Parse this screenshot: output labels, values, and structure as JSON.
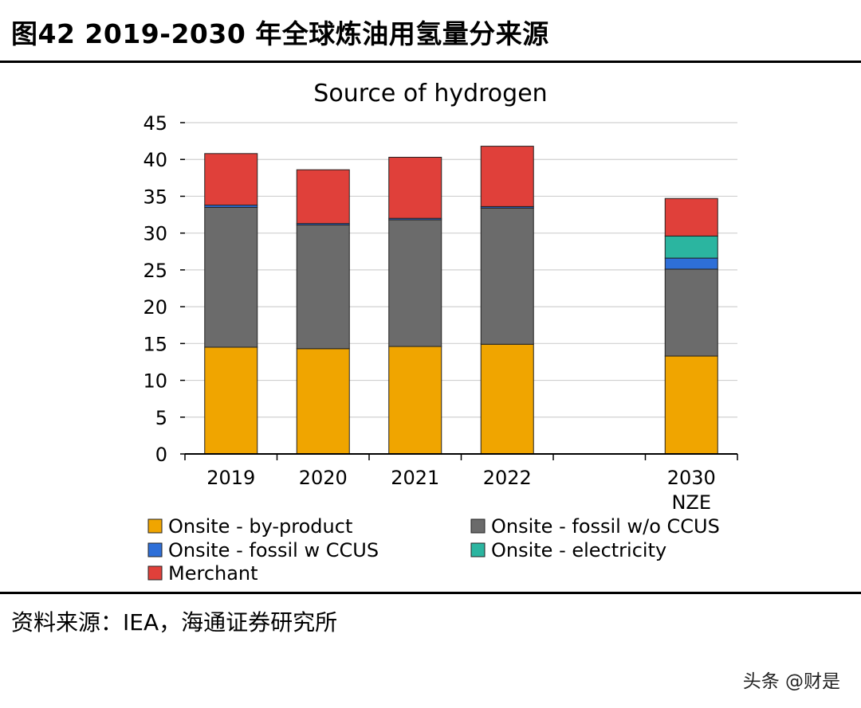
{
  "figure": {
    "title": "图42 2019-2030 年全球炼油用氢量分来源",
    "source": "资料来源：IEA，海通证券研究所",
    "watermark": "头条 @财是"
  },
  "chart_data": {
    "type": "bar",
    "stacked": true,
    "title": "Source of hydrogen",
    "xlabel": "",
    "ylabel": "",
    "ylim": [
      0,
      45
    ],
    "yticks": [
      0,
      5,
      10,
      15,
      20,
      25,
      30,
      35,
      40,
      45
    ],
    "grid": true,
    "legend_position": "bottom",
    "categories": [
      "2019",
      "2020",
      "2021",
      "2022",
      "",
      "2030 NZE"
    ],
    "category_lines": [
      [
        "2019"
      ],
      [
        "2020"
      ],
      [
        "2021"
      ],
      [
        "2022"
      ],
      [],
      [
        "2030",
        "NZE"
      ]
    ],
    "series": [
      {
        "name": "Onsite - by-product",
        "color": "#F0A500",
        "values": [
          14.5,
          14.3,
          14.6,
          14.9,
          null,
          13.3
        ]
      },
      {
        "name": "Onsite - fossil w/o CCUS",
        "color": "#6B6B6B",
        "values": [
          19.0,
          16.8,
          17.2,
          18.5,
          null,
          11.8
        ]
      },
      {
        "name": "Onsite - fossil w CCUS",
        "color": "#2E6FD8",
        "values": [
          0.3,
          0.2,
          0.2,
          0.2,
          null,
          1.5
        ]
      },
      {
        "name": "Onsite - electricity",
        "color": "#2BB5A0",
        "values": [
          0,
          0,
          0,
          0,
          null,
          3.0
        ]
      },
      {
        "name": "Merchant",
        "color": "#E0403A",
        "values": [
          7.0,
          7.3,
          8.3,
          8.2,
          null,
          5.1
        ]
      }
    ]
  }
}
